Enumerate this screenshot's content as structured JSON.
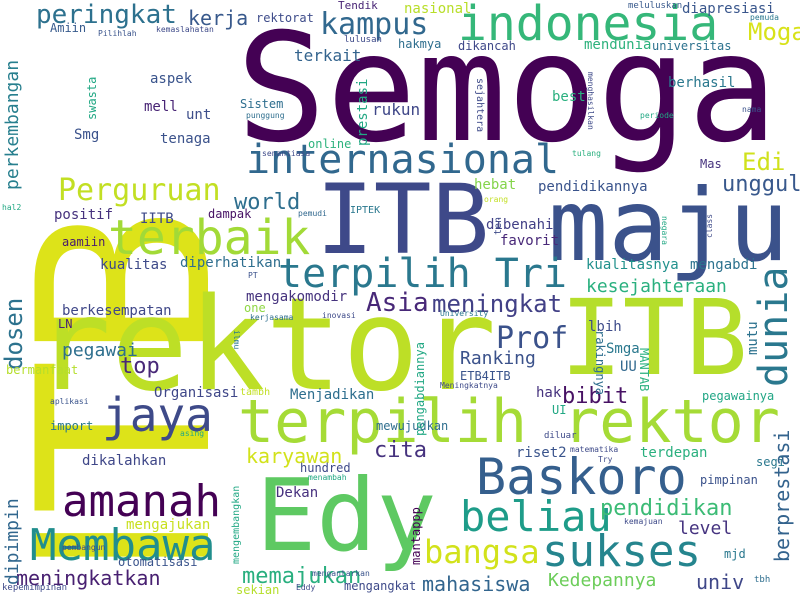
{
  "cloud": {
    "words": [
      {
        "text": "ITB",
        "color": "#dde319"
      },
      {
        "text": "Semoga",
        "color": "#440154"
      },
      {
        "text": "rektor",
        "color": "#bddf26"
      },
      {
        "text": "maju",
        "color": "#3b528b"
      },
      {
        "text": "ITB",
        "color": "#3e4989"
      },
      {
        "text": "ITB",
        "color": "#b5de2b"
      },
      {
        "text": "Edy",
        "color": "#5ec962"
      },
      {
        "text": "terpilih rektor",
        "color": "#a5db36"
      },
      {
        "text": "indonesia",
        "color": "#35b779"
      },
      {
        "text": "internasional",
        "color": "#31688e"
      },
      {
        "text": "Baskoro",
        "color": "#355f8d"
      },
      {
        "text": "terpilih Tri",
        "color": "#2a788e"
      },
      {
        "text": "terbaik",
        "color": "#a2da37"
      },
      {
        "text": "jaya",
        "color": "#3e4a89"
      },
      {
        "text": "amanah",
        "color": "#440154"
      },
      {
        "text": "sukses",
        "color": "#25858e"
      },
      {
        "text": "beliau",
        "color": "#1e9c89"
      },
      {
        "text": "Membawa",
        "color": "#218e8d"
      },
      {
        "text": "dunia",
        "color": "#2a788e"
      },
      {
        "text": "Perguruan",
        "color": "#c2df23"
      },
      {
        "text": "kampus",
        "color": "#31688e"
      },
      {
        "text": "peringkat",
        "color": "#2d718e"
      },
      {
        "text": "bangsa",
        "color": "#d2e21b"
      },
      {
        "text": "Prof",
        "color": "#3b528b"
      },
      {
        "text": "Asia",
        "color": "#482878"
      },
      {
        "text": "meningkat",
        "color": "#424086"
      },
      {
        "text": "Moga",
        "color": "#d8e219"
      },
      {
        "text": "Edi",
        "color": "#d0e11c"
      },
      {
        "text": "unggul",
        "color": "#38588c"
      },
      {
        "text": "world",
        "color": "#2e6e8e"
      },
      {
        "text": "dosen",
        "color": "#2c728e"
      },
      {
        "text": "Ranking",
        "color": "#3b528b"
      },
      {
        "text": "pendidikan",
        "color": "#3bbb75"
      },
      {
        "text": "meningkatkan",
        "color": "#482071"
      },
      {
        "text": "memajukan",
        "color": "#29af7f"
      },
      {
        "text": "mahasiswa",
        "color": "#32658e"
      },
      {
        "text": "Kedepannya",
        "color": "#6ccd5a"
      },
      {
        "text": "univ",
        "color": "#3f4788"
      },
      {
        "text": "berprestasi",
        "color": "#33638d"
      },
      {
        "text": "kerja",
        "color": "#38598c"
      },
      {
        "text": "kesejahteraan",
        "color": "#2ab07f"
      },
      {
        "text": "top",
        "color": "#482878"
      },
      {
        "text": "bibit",
        "color": "#471164"
      },
      {
        "text": "cita",
        "color": "#46327e"
      },
      {
        "text": "karyawan",
        "color": "#d2e21b"
      },
      {
        "text": "pegawai",
        "color": "#2e6f8e"
      },
      {
        "text": "dipimpin",
        "color": "#31678e"
      },
      {
        "text": "perkembangan",
        "color": "#277f8e"
      },
      {
        "text": "level",
        "color": "#463480"
      },
      {
        "text": "diapresiasi",
        "color": "#39568c"
      },
      {
        "text": "Dekan",
        "color": "#46307e"
      },
      {
        "text": "mendunia",
        "color": "#2db27d"
      },
      {
        "text": "rektorat",
        "color": "#3e4c8a"
      },
      {
        "text": "nasional",
        "color": "#b8de29"
      },
      {
        "text": "Amiin",
        "color": "#375a8c"
      },
      {
        "text": "dikancah",
        "color": "#3f4889"
      },
      {
        "text": "universitas",
        "color": "#2c728e"
      },
      {
        "text": "hakmya",
        "color": "#2e6e8e"
      },
      {
        "text": "terkait",
        "color": "#33638d"
      },
      {
        "text": "rukun",
        "color": "#3f4788"
      },
      {
        "text": "best",
        "color": "#2ab07f"
      },
      {
        "text": "berhasil",
        "color": "#2a788e"
      },
      {
        "text": "aspek",
        "color": "#3a548c"
      },
      {
        "text": "mell",
        "color": "#482475"
      },
      {
        "text": "unt",
        "color": "#3d4e8a"
      },
      {
        "text": "Smg",
        "color": "#3b528b"
      },
      {
        "text": "tenaga",
        "color": "#3b528b"
      },
      {
        "text": "prestasi",
        "color": "#22a884"
      },
      {
        "text": "online",
        "color": "#2db27d"
      },
      {
        "text": "Mas",
        "color": "#46337e"
      },
      {
        "text": "hebat",
        "color": "#84d44b"
      },
      {
        "text": "pendidikannya",
        "color": "#3a548c"
      },
      {
        "text": "positif",
        "color": "#46327e"
      },
      {
        "text": "IITB",
        "color": "#3e4a89"
      },
      {
        "text": "dampak",
        "color": "#471365"
      },
      {
        "text": "dibenahi",
        "color": "#424086"
      },
      {
        "text": "favorit",
        "color": "#482878"
      },
      {
        "text": "kualitas",
        "color": "#3e4a89"
      },
      {
        "text": "diperhatikan",
        "color": "#2e6e8e"
      },
      {
        "text": "aamiin",
        "color": "#481b6d"
      },
      {
        "text": "kualitasnya",
        "color": "#21918c"
      },
      {
        "text": "mengabdi",
        "color": "#2c728e"
      },
      {
        "text": "mengakomodir",
        "color": "#46337e"
      },
      {
        "text": "berkesempatan",
        "color": "#3f4788"
      },
      {
        "text": "LN",
        "color": "#482475"
      },
      {
        "text": "one",
        "color": "#8fd744"
      },
      {
        "text": "lbih",
        "color": "#3e4c8a"
      },
      {
        "text": "mutu",
        "color": "#2c728e"
      },
      {
        "text": "Smga",
        "color": "#2a788e"
      },
      {
        "text": "UU",
        "color": "#31688e"
      },
      {
        "text": "hak",
        "color": "#46327e"
      },
      {
        "text": "UI",
        "color": "#22a884"
      },
      {
        "text": "pegawainya",
        "color": "#21a685"
      },
      {
        "text": "ETB4ITB",
        "color": "#3a548c"
      },
      {
        "text": "Menjadikan",
        "color": "#2e6e8e"
      },
      {
        "text": "Organisasi",
        "color": "#3f4788"
      },
      {
        "text": "bermanfaat",
        "color": "#b5de2b"
      },
      {
        "text": "import",
        "color": "#2a788e"
      },
      {
        "text": "hundred",
        "color": "#3e4a89"
      },
      {
        "text": "riset2",
        "color": "#3a548c"
      },
      {
        "text": "terdepan",
        "color": "#2ab07f"
      },
      {
        "text": "segi",
        "color": "#2a788e"
      },
      {
        "text": "pimpinan",
        "color": "#3b528b"
      },
      {
        "text": "mewujudkan",
        "color": "#2e6e8e"
      },
      {
        "text": "dikalahkan",
        "color": "#3f4788"
      },
      {
        "text": "mengajukan",
        "color": "#c8e020"
      },
      {
        "text": "mantappp",
        "color": "#440154"
      },
      {
        "text": "otomatisasi",
        "color": "#3a548c"
      },
      {
        "text": "sekian",
        "color": "#b5de2b"
      },
      {
        "text": "mengangkat",
        "color": "#3e4a89"
      },
      {
        "text": "mjd",
        "color": "#2a788e"
      },
      {
        "text": "Tendik",
        "color": "#482475"
      },
      {
        "text": "meluluskan",
        "color": "#38598c"
      },
      {
        "text": "pemuda",
        "color": "#2a788e"
      },
      {
        "text": "lulusan",
        "color": "#3e4a89"
      },
      {
        "text": "Pilihlah",
        "color": "#3a548c"
      },
      {
        "text": "kemaslahatan",
        "color": "#3e4a89"
      },
      {
        "text": "swasta",
        "color": "#22a884"
      },
      {
        "text": "Sistem",
        "color": "#2e6e8e"
      },
      {
        "text": "punggung",
        "color": "#2e6e8e"
      },
      {
        "text": "sejahtera",
        "color": "#3e4a89"
      },
      {
        "text": "menghasilkan",
        "color": "#3e4a89"
      },
      {
        "text": "nama",
        "color": "#3b528b"
      },
      {
        "text": "periode",
        "color": "#22a884"
      },
      {
        "text": "tulang",
        "color": "#2ab07f"
      },
      {
        "text": "senantiasa",
        "color": "#3e4a89"
      },
      {
        "text": "hal2",
        "color": "#22a884"
      },
      {
        "text": "pemudi",
        "color": "#31688e"
      },
      {
        "text": "IPTEK",
        "color": "#2a788e"
      },
      {
        "text": "orang",
        "color": "#c2df23"
      },
      {
        "text": "negara",
        "color": "#22a884"
      },
      {
        "text": "class",
        "color": "#3e4a89"
      },
      {
        "text": "PT",
        "color": "#3b528b"
      },
      {
        "text": "kerjasama",
        "color": "#2e6e8e"
      },
      {
        "text": "inovasi",
        "color": "#3e4a89"
      },
      {
        "text": "University",
        "color": "#2a788e"
      },
      {
        "text": "ilmu",
        "color": "#2a788e"
      },
      {
        "text": "pengabdiannya",
        "color": "#22a884"
      },
      {
        "text": "rakingnya",
        "color": "#2e6e8e"
      },
      {
        "text": "MANTAB",
        "color": "#2ab07f"
      },
      {
        "text": "Meningkatnya",
        "color": "#3e4a89"
      },
      {
        "text": "aplikasi",
        "color": "#3a548c"
      },
      {
        "text": "tambh",
        "color": "#c2df23"
      },
      {
        "text": "asing",
        "color": "#22a884"
      },
      {
        "text": "diluar",
        "color": "#3e4a89"
      },
      {
        "text": "matematika",
        "color": "#3e4a89"
      },
      {
        "text": "Try",
        "color": "#3e4a89"
      },
      {
        "text": "menambah",
        "color": "#22a884"
      },
      {
        "text": "mengembangkan",
        "color": "#22a884"
      },
      {
        "text": "kemajuan",
        "color": "#3e4a89"
      },
      {
        "text": "pembangun",
        "color": "#3e4a89"
      },
      {
        "text": "kepemimpinan",
        "color": "#3e4a89"
      },
      {
        "text": "Eddy",
        "color": "#3e4a89"
      },
      {
        "text": "mengantarkan",
        "color": "#3a548c"
      },
      {
        "text": "tbh",
        "color": "#2e6e8e"
      },
      {
        "text": "ten",
        "color": "#3e4a89"
      }
    ]
  }
}
